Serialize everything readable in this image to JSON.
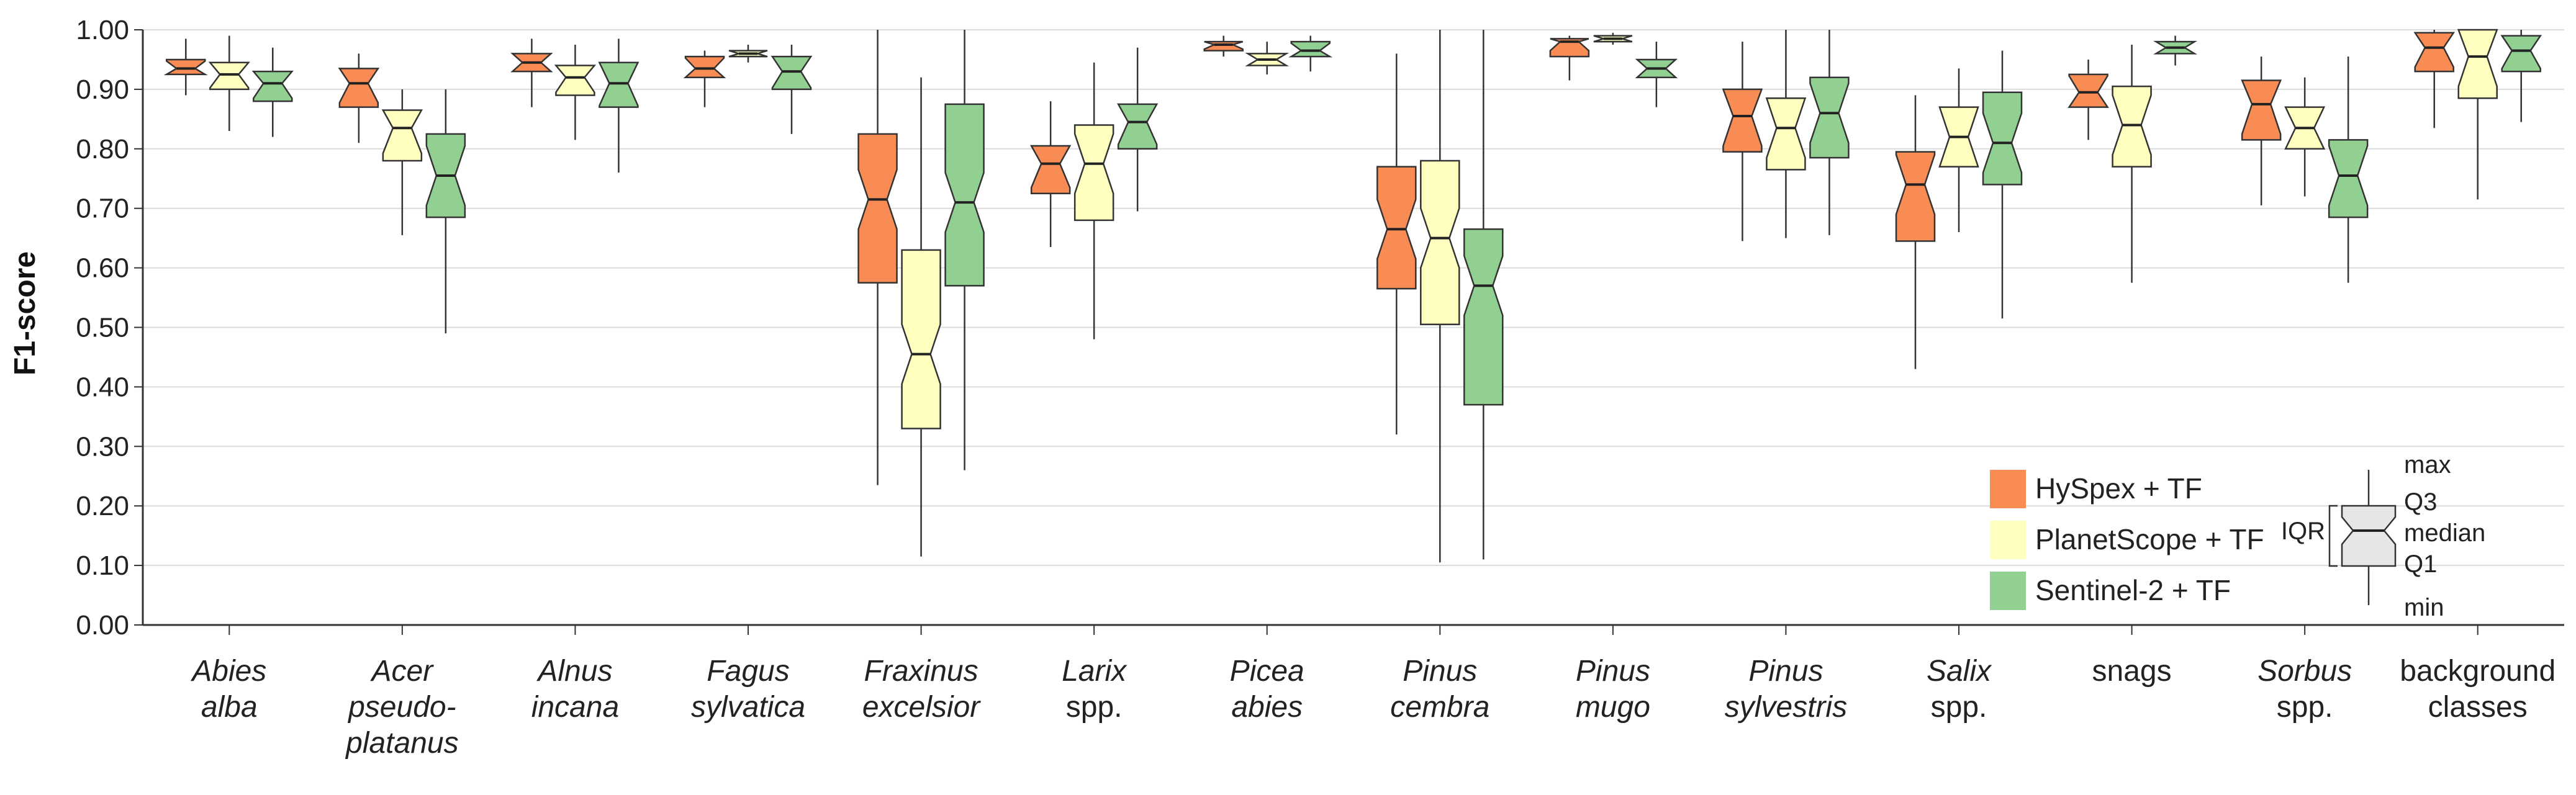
{
  "chart_data": {
    "type": "boxplot",
    "ylabel": "F1-score",
    "ylim": [
      0,
      1
    ],
    "yticks": [
      "0.00",
      "0.10",
      "0.20",
      "0.30",
      "0.40",
      "0.50",
      "0.60",
      "0.70",
      "0.80",
      "0.90",
      "1.00"
    ],
    "grid": true,
    "notched": true,
    "legend_position": "bottom-right",
    "categories": [
      {
        "lines": [
          "Abies",
          "alba"
        ],
        "italic": [
          true,
          true
        ]
      },
      {
        "lines": [
          "Acer",
          "pseudo-",
          "platanus"
        ],
        "italic": [
          true,
          true,
          true
        ]
      },
      {
        "lines": [
          "Alnus",
          "incana"
        ],
        "italic": [
          true,
          true
        ]
      },
      {
        "lines": [
          "Fagus",
          "sylvatica"
        ],
        "italic": [
          true,
          true
        ]
      },
      {
        "lines": [
          "Fraxinus",
          "excelsior"
        ],
        "italic": [
          true,
          true
        ]
      },
      {
        "lines": [
          "Larix",
          "spp."
        ],
        "italic": [
          true,
          false
        ]
      },
      {
        "lines": [
          "Picea",
          "abies"
        ],
        "italic": [
          true,
          true
        ]
      },
      {
        "lines": [
          "Pinus",
          "cembra"
        ],
        "italic": [
          true,
          true
        ]
      },
      {
        "lines": [
          "Pinus",
          "mugo"
        ],
        "italic": [
          true,
          true
        ]
      },
      {
        "lines": [
          "Pinus",
          "sylvestris"
        ],
        "italic": [
          true,
          true
        ]
      },
      {
        "lines": [
          "Salix",
          "spp."
        ],
        "italic": [
          true,
          false
        ]
      },
      {
        "lines": [
          "snags"
        ],
        "italic": [
          false
        ]
      },
      {
        "lines": [
          "Sorbus",
          "spp."
        ],
        "italic": [
          true,
          false
        ]
      },
      {
        "lines": [
          "background",
          "classes"
        ],
        "italic": [
          false,
          false
        ]
      }
    ],
    "series": [
      {
        "name": "HySpex + TF",
        "color": "#f98b55",
        "boxes": [
          {
            "min": 0.89,
            "q1": 0.925,
            "median": 0.935,
            "q3": 0.95,
            "max": 0.985
          },
          {
            "min": 0.81,
            "q1": 0.87,
            "median": 0.91,
            "q3": 0.935,
            "max": 0.96
          },
          {
            "min": 0.87,
            "q1": 0.93,
            "median": 0.945,
            "q3": 0.96,
            "max": 0.985
          },
          {
            "min": 0.87,
            "q1": 0.92,
            "median": 0.935,
            "q3": 0.955,
            "max": 0.965
          },
          {
            "min": 0.235,
            "q1": 0.575,
            "median": 0.715,
            "q3": 0.825,
            "max": 1.0
          },
          {
            "min": 0.635,
            "q1": 0.725,
            "median": 0.775,
            "q3": 0.805,
            "max": 0.88
          },
          {
            "min": 0.955,
            "q1": 0.965,
            "median": 0.975,
            "q3": 0.98,
            "max": 0.99
          },
          {
            "min": 0.32,
            "q1": 0.565,
            "median": 0.665,
            "q3": 0.77,
            "max": 0.96
          },
          {
            "min": 0.915,
            "q1": 0.955,
            "median": 0.98,
            "q3": 0.985,
            "max": 0.99
          },
          {
            "min": 0.645,
            "q1": 0.795,
            "median": 0.855,
            "q3": 0.9,
            "max": 0.98
          },
          {
            "min": 0.43,
            "q1": 0.645,
            "median": 0.74,
            "q3": 0.795,
            "max": 0.89
          },
          {
            "min": 0.815,
            "q1": 0.87,
            "median": 0.895,
            "q3": 0.925,
            "max": 0.95
          },
          {
            "min": 0.705,
            "q1": 0.815,
            "median": 0.875,
            "q3": 0.915,
            "max": 0.955
          },
          {
            "min": 0.835,
            "q1": 0.93,
            "median": 0.97,
            "q3": 0.995,
            "max": 1.0
          }
        ]
      },
      {
        "name": "PlanetScope + TF",
        "color": "#ffffc0",
        "boxes": [
          {
            "min": 0.83,
            "q1": 0.9,
            "median": 0.925,
            "q3": 0.945,
            "max": 0.99
          },
          {
            "min": 0.655,
            "q1": 0.78,
            "median": 0.835,
            "q3": 0.865,
            "max": 0.9
          },
          {
            "min": 0.815,
            "q1": 0.89,
            "median": 0.92,
            "q3": 0.94,
            "max": 0.975
          },
          {
            "min": 0.945,
            "q1": 0.955,
            "median": 0.96,
            "q3": 0.965,
            "max": 0.975
          },
          {
            "min": 0.115,
            "q1": 0.33,
            "median": 0.455,
            "q3": 0.63,
            "max": 0.92
          },
          {
            "min": 0.48,
            "q1": 0.68,
            "median": 0.775,
            "q3": 0.84,
            "max": 0.945
          },
          {
            "min": 0.925,
            "q1": 0.94,
            "median": 0.95,
            "q3": 0.96,
            "max": 0.98
          },
          {
            "min": 0.105,
            "q1": 0.505,
            "median": 0.65,
            "q3": 0.78,
            "max": 1.0
          },
          {
            "min": 0.975,
            "q1": 0.98,
            "median": 0.985,
            "q3": 0.99,
            "max": 0.995
          },
          {
            "min": 0.65,
            "q1": 0.765,
            "median": 0.835,
            "q3": 0.885,
            "max": 1.0
          },
          {
            "min": 0.66,
            "q1": 0.77,
            "median": 0.82,
            "q3": 0.87,
            "max": 0.935
          },
          {
            "min": 0.575,
            "q1": 0.77,
            "median": 0.84,
            "q3": 0.905,
            "max": 0.975
          },
          {
            "min": 0.72,
            "q1": 0.8,
            "median": 0.835,
            "q3": 0.87,
            "max": 0.92
          },
          {
            "min": 0.715,
            "q1": 0.885,
            "median": 0.955,
            "q3": 1.0,
            "max": 1.0
          }
        ]
      },
      {
        "name": "Sentinel-2 + TF",
        "color": "#92d092",
        "boxes": [
          {
            "min": 0.82,
            "q1": 0.88,
            "median": 0.91,
            "q3": 0.93,
            "max": 0.97
          },
          {
            "min": 0.49,
            "q1": 0.685,
            "median": 0.755,
            "q3": 0.825,
            "max": 0.9
          },
          {
            "min": 0.76,
            "q1": 0.87,
            "median": 0.91,
            "q3": 0.945,
            "max": 0.985
          },
          {
            "min": 0.825,
            "q1": 0.9,
            "median": 0.93,
            "q3": 0.955,
            "max": 0.975
          },
          {
            "min": 0.26,
            "q1": 0.57,
            "median": 0.71,
            "q3": 0.875,
            "max": 1.0
          },
          {
            "min": 0.695,
            "q1": 0.8,
            "median": 0.845,
            "q3": 0.875,
            "max": 0.97
          },
          {
            "min": 0.93,
            "q1": 0.955,
            "median": 0.965,
            "q3": 0.98,
            "max": 0.99
          },
          {
            "min": 0.11,
            "q1": 0.37,
            "median": 0.57,
            "q3": 0.665,
            "max": 1.0
          },
          {
            "min": 0.87,
            "q1": 0.92,
            "median": 0.935,
            "q3": 0.95,
            "max": 0.98
          },
          {
            "min": 0.655,
            "q1": 0.785,
            "median": 0.86,
            "q3": 0.92,
            "max": 1.0
          },
          {
            "min": 0.515,
            "q1": 0.74,
            "median": 0.81,
            "q3": 0.895,
            "max": 0.965
          },
          {
            "min": 0.94,
            "q1": 0.96,
            "median": 0.97,
            "q3": 0.98,
            "max": 0.99
          },
          {
            "min": 0.575,
            "q1": 0.685,
            "median": 0.755,
            "q3": 0.815,
            "max": 0.955
          },
          {
            "min": 0.845,
            "q1": 0.93,
            "median": 0.965,
            "q3": 0.99,
            "max": 1.0
          }
        ]
      }
    ],
    "box_key": {
      "color": "#e6e6e6",
      "group_label": "IQR",
      "labels": [
        "max",
        "Q3",
        "median",
        "Q1",
        "min"
      ]
    }
  }
}
